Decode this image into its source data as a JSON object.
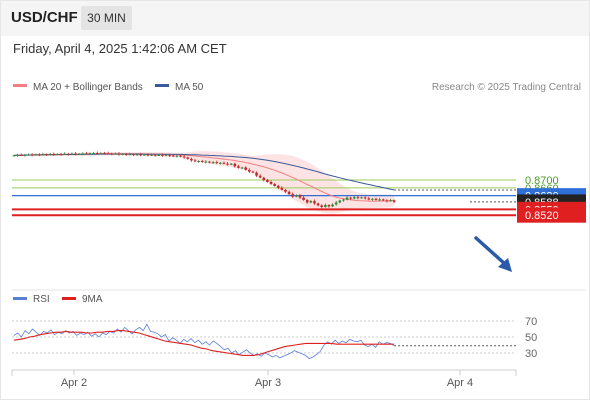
{
  "header": {
    "symbol": "USD/CHF",
    "timeframe": "30 MIN",
    "datetime": "Friday, April 4, 2025 1:42:06 AM CET"
  },
  "legend": {
    "ma20": "MA 20 + Bollinger Bands",
    "ma50": "MA 50",
    "credit": "Research © 2025 Trading Central",
    "rsi": "RSI",
    "rsi_ma": "9MA"
  },
  "colors": {
    "ma20": "#f08080",
    "ma50": "#3a5998",
    "bollinger_fill": "#fde0e0",
    "bull": "#2e8b3d",
    "bear": "#c62828",
    "resistance": "#9acd5a",
    "pivot": "#2f6fd8",
    "support": "#e02020",
    "current": "#222222",
    "arrow": "#2a5aa8",
    "rsi_line": "#5a7fd8",
    "rsi_ma_line": "#e02020"
  },
  "chart_data": [
    {
      "type": "candlestick",
      "instrument": "USD/CHF",
      "interval": "30 MIN",
      "x_ticks": [
        "Apr 2",
        "Apr 3",
        "Apr 4"
      ],
      "levels": [
        {
          "label": "0.8700",
          "value": 0.87,
          "kind": "resistance"
        },
        {
          "label": "0.8660",
          "value": 0.866,
          "kind": "resistance"
        },
        {
          "label": "0.8620",
          "value": 0.862,
          "kind": "pivot"
        },
        {
          "label": "0.8588",
          "value": 0.8588,
          "kind": "current"
        },
        {
          "label": "0.8550",
          "value": 0.855,
          "kind": "support"
        },
        {
          "label": "0.8520",
          "value": 0.852,
          "kind": "support"
        }
      ],
      "ylim": [
        0.8505,
        0.886
      ],
      "series": [
        {
          "name": "MA 20 + Bollinger Bands"
        },
        {
          "name": "MA 50"
        }
      ],
      "close": [
        0.8826,
        0.8828,
        0.8827,
        0.8829,
        0.883,
        0.8828,
        0.8831,
        0.8829,
        0.8832,
        0.883,
        0.8833,
        0.8831,
        0.8833,
        0.8832,
        0.8834,
        0.8832,
        0.8835,
        0.8833,
        0.8834,
        0.8836,
        0.8834,
        0.8837,
        0.8838,
        0.8836,
        0.8838,
        0.8837,
        0.8836,
        0.8834,
        0.8835,
        0.8831,
        0.8833,
        0.883,
        0.8832,
        0.8829,
        0.8831,
        0.8828,
        0.883,
        0.8827,
        0.8829,
        0.8826,
        0.8828,
        0.8826,
        0.8827,
        0.8825,
        0.8822,
        0.8824,
        0.882,
        0.8815,
        0.8808,
        0.88,
        0.8795,
        0.8797,
        0.8792,
        0.8794,
        0.8789,
        0.8791,
        0.8786,
        0.8788,
        0.8784,
        0.878,
        0.8783,
        0.877,
        0.8762,
        0.8764,
        0.8752,
        0.8743,
        0.8738,
        0.8722,
        0.8712,
        0.87,
        0.869,
        0.868,
        0.867,
        0.866,
        0.865,
        0.864,
        0.8628,
        0.8615,
        0.8623,
        0.861,
        0.8598,
        0.8585,
        0.8592,
        0.858,
        0.857,
        0.8562,
        0.8572,
        0.8565,
        0.8575,
        0.8585,
        0.8595,
        0.86,
        0.861,
        0.8605,
        0.8612,
        0.8608,
        0.8611,
        0.8606,
        0.86,
        0.8604,
        0.8598,
        0.8601,
        0.8596,
        0.8592,
        0.8596,
        0.8588
      ],
      "rsi": {
        "levels": [
          70,
          50,
          30
        ],
        "values": [
          52,
          55,
          50,
          58,
          54,
          60,
          56,
          52,
          57,
          55,
          59,
          53,
          56,
          54,
          58,
          55,
          57,
          52,
          55,
          53,
          56,
          51,
          54,
          50,
          55,
          53,
          57,
          55,
          60,
          56,
          62,
          58,
          54,
          59,
          62,
          58,
          66,
          57,
          56,
          54,
          50,
          53,
          45,
          49,
          46,
          42,
          47,
          44,
          48,
          43,
          46,
          41,
          44,
          40,
          45,
          42,
          38,
          34,
          36,
          30,
          33,
          28,
          31,
          34,
          30,
          27,
          29,
          26,
          30,
          28,
          25,
          27,
          24,
          26,
          28,
          30,
          33,
          31,
          29,
          27,
          23,
          25,
          28,
          32,
          40,
          44,
          41,
          46,
          42,
          45,
          43,
          47,
          45,
          44,
          46,
          40,
          38,
          41,
          37,
          44,
          41,
          43,
          42,
          39
        ],
        "ma": [
          46,
          47,
          48,
          50,
          51,
          53,
          54,
          55,
          56,
          56,
          57,
          56,
          56,
          56,
          55,
          55,
          56,
          56,
          57,
          57,
          58,
          58,
          57,
          56,
          55,
          53,
          51,
          49,
          47,
          45,
          44,
          43,
          42,
          41,
          40,
          38,
          36,
          35,
          33,
          32,
          31,
          30,
          29,
          28,
          27,
          27,
          27,
          28,
          30,
          32,
          34,
          36,
          38,
          39,
          40,
          41,
          42,
          42,
          42,
          42,
          42,
          42,
          41,
          41,
          41,
          41,
          41,
          41,
          41,
          41,
          41,
          41,
          41,
          41
        ]
      }
    }
  ]
}
